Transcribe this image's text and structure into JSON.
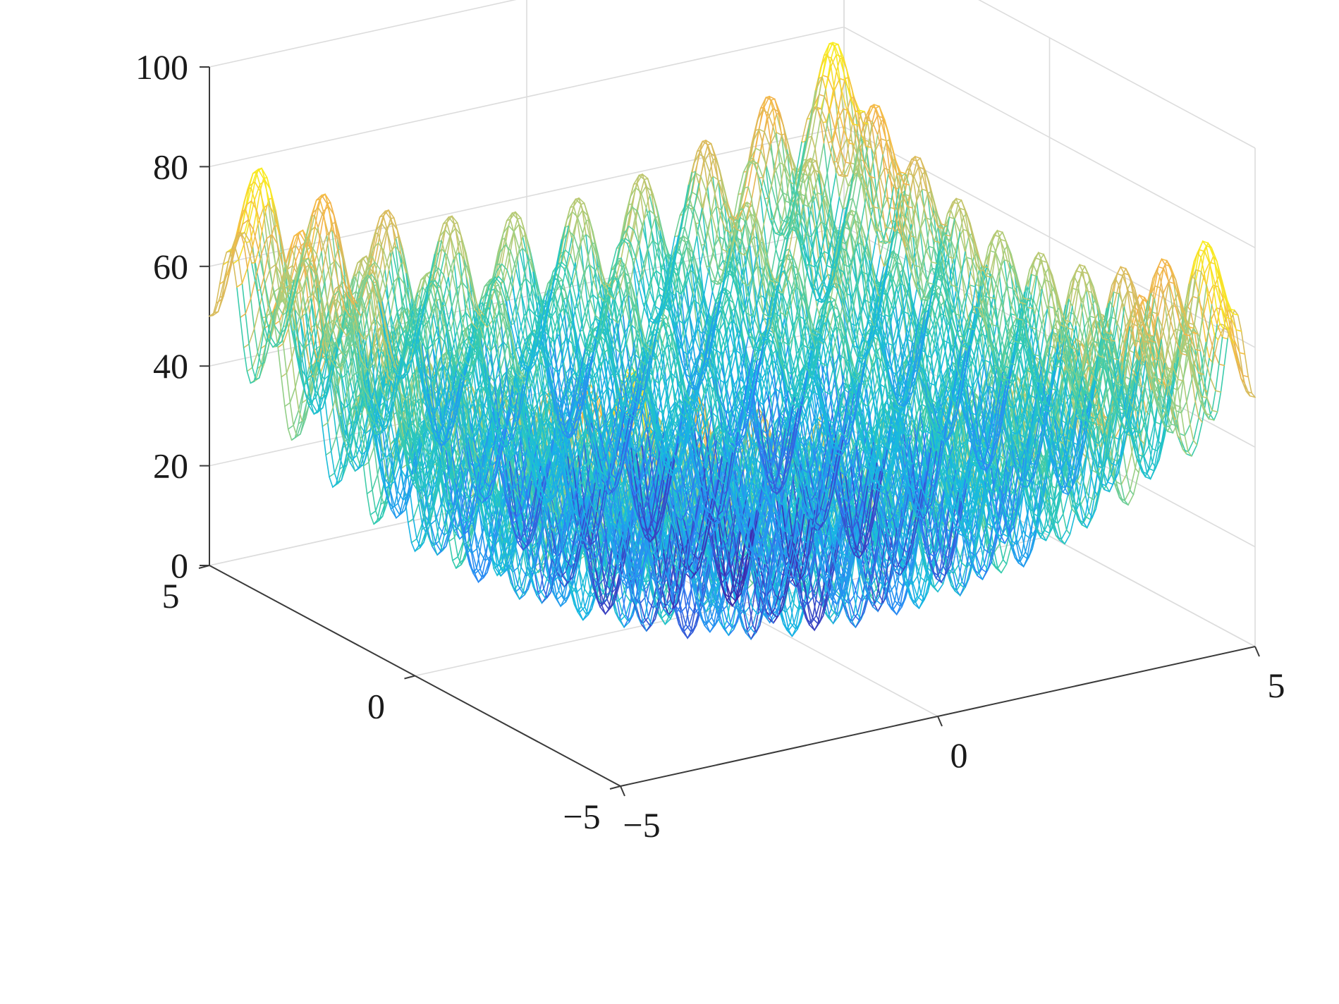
{
  "chart_data": {
    "type": "surface",
    "function": "rastrigin",
    "title": "",
    "xlabel": "",
    "ylabel": "",
    "zlabel": "",
    "x_range": [
      -5,
      5
    ],
    "y_range": [
      -5,
      5
    ],
    "zlim": [
      0,
      100
    ],
    "x_ticks": [
      -5,
      0,
      5
    ],
    "x_tick_labels": [
      "−5",
      "0",
      "5"
    ],
    "y_ticks": [
      -5,
      0,
      5
    ],
    "y_tick_labels": [
      "−5",
      "0",
      "5"
    ],
    "z_ticks": [
      0,
      20,
      40,
      60,
      80,
      100
    ],
    "z_tick_labels": [
      "0",
      "20",
      "40",
      "60",
      "80",
      "100"
    ],
    "grid": true,
    "colormap": [
      "#3e26a8",
      "#2f7ff7",
      "#16b9e2",
      "#31cbb0",
      "#a6d07f",
      "#f4b24c",
      "#f9fb15"
    ],
    "color_range": [
      0,
      80
    ],
    "view": "matlab-default-3d",
    "annotations": {
      "global_minimum": {
        "x": 0,
        "y": 0,
        "z": 0
      },
      "highest_corner_peak": {
        "x": 4.5,
        "y": 4.5,
        "z": 80.5
      }
    }
  }
}
